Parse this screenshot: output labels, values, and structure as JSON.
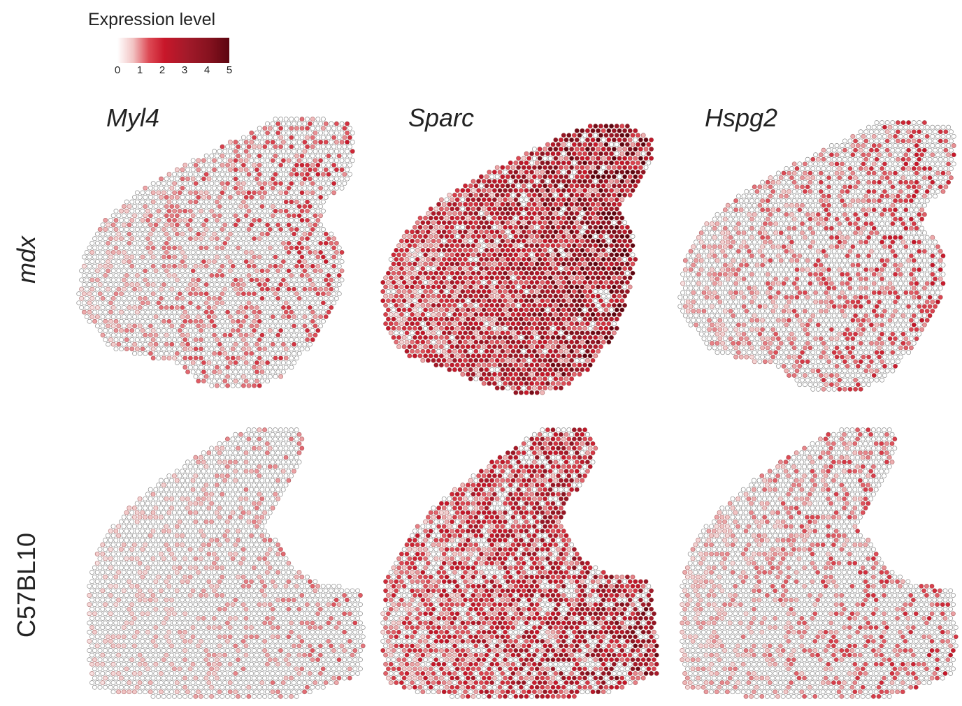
{
  "legend": {
    "title": "Expression level",
    "ticks": [
      "0",
      "1",
      "2",
      "3",
      "4",
      "5"
    ],
    "color_low": "#ffffff",
    "color_high": "#5c0510"
  },
  "genes": [
    "Myl4",
    "Sparc",
    "Hspg2"
  ],
  "conditions": [
    "mdx",
    "C57BL10"
  ],
  "spot_outline_color": "#8a8a8a",
  "panels": [
    {
      "gene": "Myl4",
      "condition": "mdx",
      "mean_expression": 0.7
    },
    {
      "gene": "Sparc",
      "condition": "mdx",
      "mean_expression": 2.6
    },
    {
      "gene": "Hspg2",
      "condition": "mdx",
      "mean_expression": 0.8
    },
    {
      "gene": "Myl4",
      "condition": "C57BL10",
      "mean_expression": 0.35
    },
    {
      "gene": "Sparc",
      "condition": "C57BL10",
      "mean_expression": 2.0
    },
    {
      "gene": "Hspg2",
      "condition": "C57BL10",
      "mean_expression": 0.7
    }
  ]
}
